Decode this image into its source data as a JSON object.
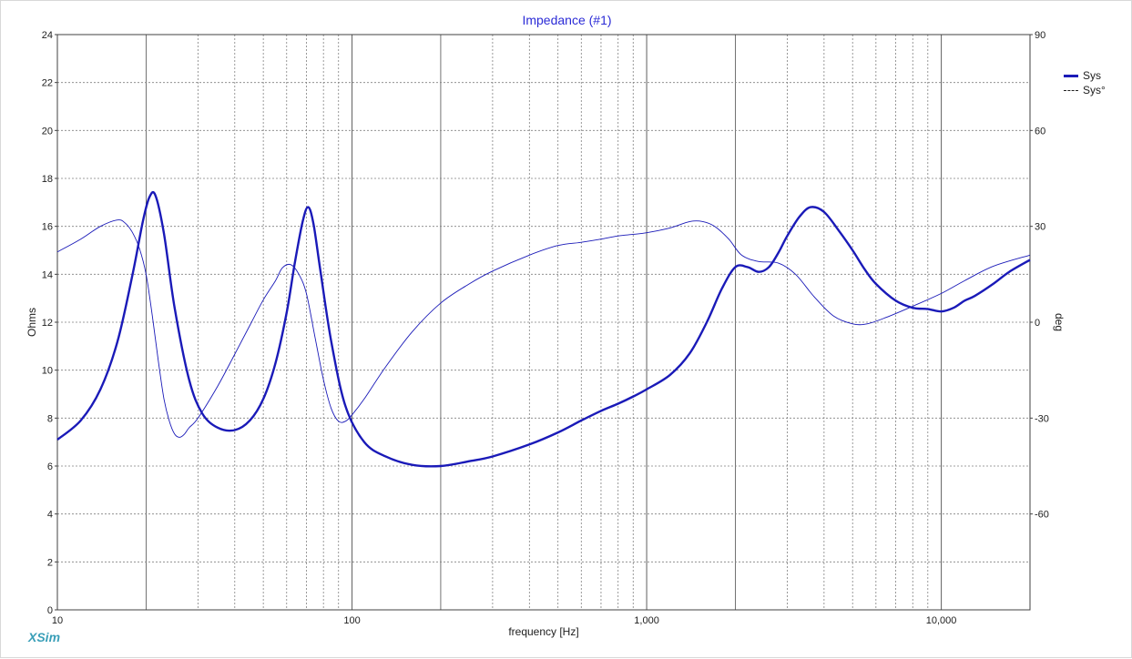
{
  "app": {
    "brand": "XSim"
  },
  "chart_data": {
    "type": "line",
    "title": "Impedance (#1)",
    "xlabel": "frequency [Hz]",
    "ylabel": "Ohms",
    "y2label": "deg",
    "x_scale": "log",
    "xlim": [
      10,
      20000
    ],
    "ylim": [
      0,
      24
    ],
    "y2lim": [
      -90,
      90
    ],
    "grid": true,
    "legend_position": "top-right",
    "x_ticks": [
      10,
      100,
      1000,
      10000
    ],
    "x_tick_labels": [
      "10",
      "100",
      "1,000",
      "10,000"
    ],
    "y_ticks": [
      0,
      2,
      4,
      6,
      8,
      10,
      12,
      14,
      16,
      18,
      20,
      22,
      24
    ],
    "y_tick_labels": [
      "0",
      "2",
      "4",
      "6",
      "8",
      "10",
      "12",
      "14",
      "16",
      "18",
      "20",
      "22",
      "24"
    ],
    "y2_ticks": [
      90,
      60,
      30,
      0,
      -30,
      -60
    ],
    "y2_tick_labels": [
      "90",
      "60",
      "30",
      "0",
      "-30",
      "-60"
    ],
    "colors": {
      "sys": "#1a1ab8",
      "sys_phase": "#1a1ab8",
      "grid": "#808080"
    },
    "series": [
      {
        "name": "Sys",
        "axis": "left",
        "style": "solid",
        "x": [
          10,
          12,
          14,
          16,
          18,
          19.5,
          20.5,
          21.5,
          23,
          25,
          28,
          31,
          35,
          40,
          45,
          50,
          55,
          60,
          64,
          68,
          71,
          74,
          78,
          85,
          95,
          110,
          130,
          160,
          200,
          250,
          300,
          400,
          500,
          600,
          700,
          800,
          900,
          1000,
          1200,
          1400,
          1600,
          1800,
          2000,
          2200,
          2400,
          2600,
          2800,
          3000,
          3300,
          3600,
          4000,
          4500,
          5000,
          5500,
          6000,
          7000,
          8000,
          9000,
          10000,
          11000,
          12000,
          13000,
          15000,
          17000,
          20000
        ],
        "values": [
          7.1,
          7.9,
          9.2,
          11.2,
          14.0,
          16.2,
          17.2,
          17.3,
          15.7,
          12.6,
          9.6,
          8.2,
          7.6,
          7.5,
          7.9,
          8.8,
          10.3,
          12.4,
          14.5,
          16.2,
          16.8,
          16.1,
          14.2,
          11.2,
          8.5,
          7.0,
          6.4,
          6.05,
          6.0,
          6.2,
          6.4,
          6.9,
          7.4,
          7.9,
          8.3,
          8.6,
          8.9,
          9.2,
          9.8,
          10.7,
          12.0,
          13.4,
          14.3,
          14.3,
          14.1,
          14.3,
          14.9,
          15.6,
          16.4,
          16.8,
          16.6,
          15.8,
          15.0,
          14.2,
          13.6,
          12.9,
          12.6,
          12.55,
          12.45,
          12.6,
          12.9,
          13.1,
          13.6,
          14.1,
          14.6
        ]
      },
      {
        "name": "Sys°",
        "axis": "right",
        "style": "dashed",
        "x": [
          10,
          12,
          14,
          16,
          17,
          18,
          19,
          20,
          21,
          22,
          23,
          24,
          25,
          26,
          27,
          28,
          30,
          35,
          40,
          45,
          50,
          55,
          58,
          62,
          66,
          70,
          75,
          80,
          85,
          90,
          95,
          100,
          110,
          130,
          160,
          200,
          250,
          300,
          400,
          500,
          600,
          700,
          800,
          900,
          1000,
          1200,
          1400,
          1550,
          1700,
          1900,
          2100,
          2400,
          2800,
          3200,
          3700,
          4300,
          5000,
          5600,
          6500,
          8000,
          10000,
          12000,
          15000,
          20000
        ],
        "values": [
          22,
          26,
          30,
          32,
          31,
          28,
          23,
          15,
          2,
          -12,
          -24,
          -31,
          -35,
          -36,
          -35,
          -33,
          -30,
          -20,
          -10,
          -1,
          7,
          13,
          17,
          18,
          15,
          9,
          -5,
          -18,
          -27,
          -31,
          -31,
          -29,
          -24,
          -14,
          -3,
          6,
          12,
          16,
          21,
          24,
          25,
          26,
          27,
          27.5,
          28,
          29.5,
          31.5,
          31.5,
          30,
          26,
          21,
          19,
          18.5,
          15,
          8,
          2,
          -0.5,
          -0.5,
          1.5,
          5,
          9,
          13,
          17.5,
          21
        ]
      }
    ]
  }
}
